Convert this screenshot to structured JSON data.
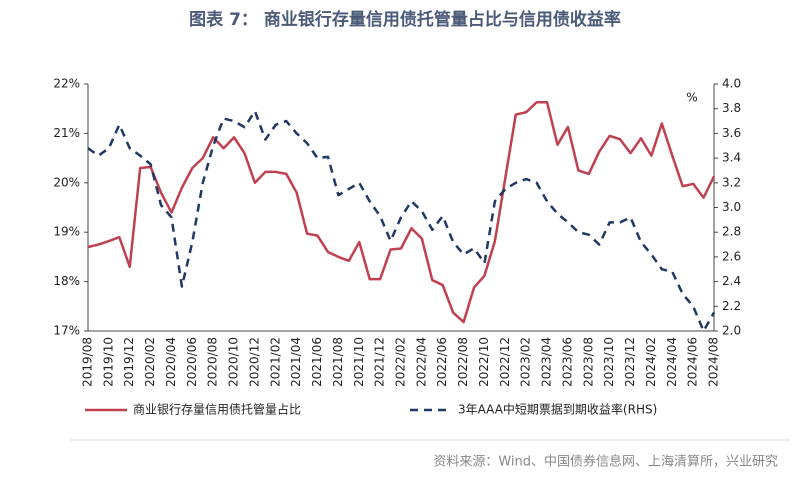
{
  "chart_data": {
    "type": "line",
    "title": "图表 7：  商业银行存量信用债托管量占比与信用债收益率",
    "source": "资料来源：Wind、中国债券信息网、上海清算所，兴业研究",
    "y2_unit": "%",
    "legend": "bottom",
    "categories": [
      "2019/08",
      null,
      "2019/10",
      null,
      "2019/12",
      null,
      "2020/02",
      null,
      "2020/04",
      null,
      "2020/06",
      null,
      "2020/08",
      null,
      "2020/10",
      null,
      "2020/12",
      null,
      "2021/02",
      null,
      "2021/04",
      null,
      "2021/06",
      null,
      "2021/08",
      null,
      "2021/10",
      null,
      "2021/12",
      null,
      "2022/02",
      null,
      "2022/04",
      null,
      "2022/06",
      null,
      "2022/08",
      null,
      "2022/10",
      null,
      "2022/12",
      null,
      "2023/02",
      null,
      "2023/04",
      null,
      "2023/06",
      null,
      "2023/08",
      null,
      "2023/10",
      null,
      "2023/12",
      null,
      "2024/02",
      null,
      "2024/04",
      null,
      "2024/06",
      null,
      "2024/08"
    ],
    "series": [
      {
        "name": "商业银行存量信用债托管量占比",
        "color": "#c0404f",
        "dashed": false,
        "values": [
          18.7,
          18.75,
          18.82,
          18.9,
          18.3,
          20.3,
          20.32,
          19.8,
          19.4,
          19.9,
          20.3,
          20.5,
          20.92,
          20.7,
          20.92,
          20.6,
          20.0,
          20.22,
          20.22,
          20.18,
          19.8,
          18.97,
          18.93,
          18.6,
          18.5,
          18.42,
          18.8,
          18.05,
          18.05,
          18.65,
          18.67,
          19.08,
          18.87,
          18.03,
          17.93,
          17.37,
          17.18,
          17.88,
          18.12,
          18.82,
          20.1,
          21.38,
          21.43,
          21.63,
          21.63,
          20.77,
          21.13,
          20.25,
          20.18,
          20.63,
          20.95,
          20.88,
          20.6,
          20.9,
          20.55,
          21.2,
          20.55,
          19.93,
          19.98,
          19.7,
          20.13
        ]
      },
      {
        "name": "3年AAA中短期票据到期收益率(RHS)",
        "color": "#1f3864",
        "dashed": true,
        "axis": "y2",
        "values": [
          3.48,
          3.42,
          3.48,
          3.67,
          3.48,
          3.42,
          3.35,
          3.02,
          2.92,
          2.36,
          2.72,
          3.2,
          3.5,
          3.72,
          3.7,
          3.65,
          3.78,
          3.55,
          3.67,
          3.7,
          3.6,
          3.52,
          3.4,
          3.41,
          3.1,
          3.15,
          3.2,
          3.05,
          2.93,
          2.73,
          2.92,
          3.05,
          2.97,
          2.82,
          2.93,
          2.72,
          2.62,
          2.67,
          2.55,
          3.05,
          3.15,
          3.2,
          3.23,
          3.2,
          3.05,
          2.95,
          2.88,
          2.8,
          2.78,
          2.7,
          2.88,
          2.88,
          2.92,
          2.72,
          2.62,
          2.5,
          2.48,
          2.3,
          2.2,
          2.0,
          2.15
        ]
      }
    ],
    "ylim": [
      17,
      22
    ],
    "yticks": [
      {
        "value": 17,
        "label": "17%"
      },
      {
        "value": 18,
        "label": "18%"
      },
      {
        "value": 19,
        "label": "19%"
      },
      {
        "value": 20,
        "label": "20%"
      },
      {
        "value": 21,
        "label": "21%"
      },
      {
        "value": 22,
        "label": "22%"
      }
    ],
    "y2lim": [
      2,
      4
    ],
    "y2ticks": [
      {
        "value": 2,
        "label": "2.0"
      },
      {
        "value": 2.2,
        "label": "2.2"
      },
      {
        "value": 2.4,
        "label": "2.4"
      },
      {
        "value": 2.6,
        "label": "2.6"
      },
      {
        "value": 2.8,
        "label": "2.8"
      },
      {
        "value": 3,
        "label": "3.0"
      },
      {
        "value": 3.2,
        "label": "3.2"
      },
      {
        "value": 3.4,
        "label": "3.4"
      },
      {
        "value": 3.6,
        "label": "3.6"
      },
      {
        "value": 3.8,
        "label": "3.8"
      },
      {
        "value": 4,
        "label": "4.0"
      }
    ]
  }
}
